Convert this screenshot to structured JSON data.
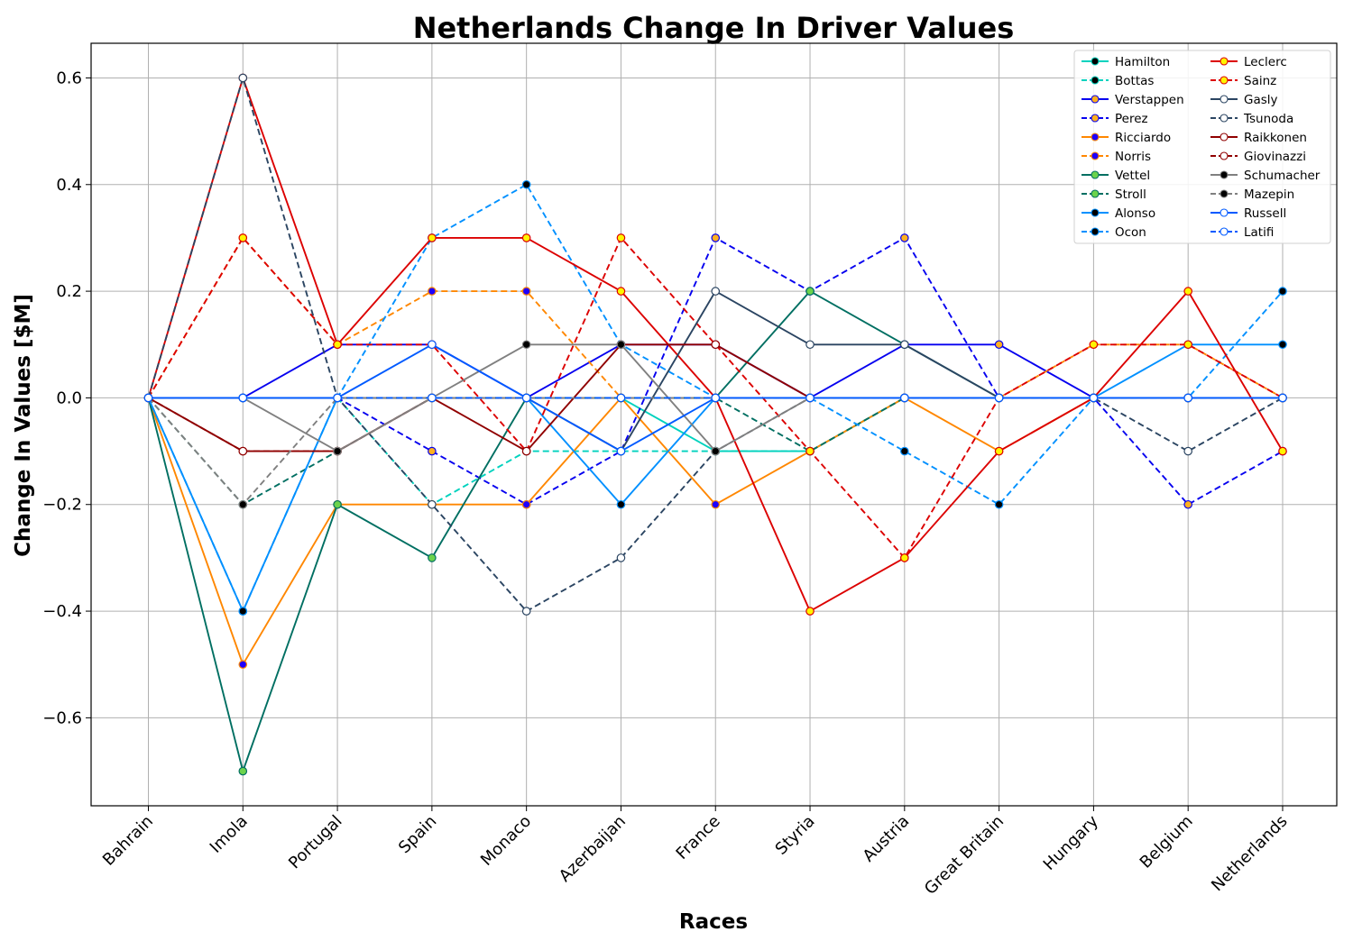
{
  "chart_data": {
    "type": "line",
    "title": "Netherlands Change In Driver Values",
    "xlabel": "Races",
    "ylabel": "Change In Values [$M]",
    "categories": [
      "Bahrain",
      "Imola",
      "Portugal",
      "Spain",
      "Monaco",
      "Azerbaijan",
      "France",
      "Styria",
      "Austria",
      "Great Britain",
      "Hungary",
      "Belgium",
      "Netherlands"
    ],
    "ylim": [
      -0.765,
      0.665
    ],
    "yticks": [
      -0.6,
      -0.4,
      -0.2,
      0.0,
      0.2,
      0.4,
      0.6
    ],
    "ytick_labels": [
      "−0.6",
      "−0.4",
      "−0.2",
      "0.0",
      "0.2",
      "0.4",
      "0.6"
    ],
    "grid": true,
    "legend_position": "top-right",
    "series": [
      {
        "name": "Hamilton",
        "color": "#00d2be",
        "dash": false,
        "marker_fill": "#000000",
        "marker_edge": "#00d2be",
        "values": [
          0,
          0,
          0,
          0,
          0,
          0,
          -0.1,
          -0.1,
          0,
          0,
          0,
          0,
          0
        ]
      },
      {
        "name": "Bottas",
        "color": "#00d2be",
        "dash": true,
        "marker_fill": "#000000",
        "marker_edge": "#00d2be",
        "values": [
          0,
          0,
          0,
          -0.2,
          -0.1,
          -0.1,
          -0.1,
          -0.1,
          0,
          0,
          0,
          0,
          0
        ]
      },
      {
        "name": "Verstappen",
        "color": "#0600ef",
        "dash": false,
        "marker_fill": "#ffb01f",
        "marker_edge": "#0600ef",
        "values": [
          0,
          0,
          0.1,
          0.1,
          0,
          0.1,
          0.1,
          0,
          0.1,
          0.1,
          0,
          0,
          0
        ]
      },
      {
        "name": "Perez",
        "color": "#0600ef",
        "dash": true,
        "marker_fill": "#ffb01f",
        "marker_edge": "#0600ef",
        "values": [
          0,
          0,
          0,
          -0.1,
          -0.2,
          -0.1,
          0.3,
          0.2,
          0.3,
          0,
          0,
          -0.2,
          -0.1
        ]
      },
      {
        "name": "Ricciardo",
        "color": "#ff8700",
        "dash": false,
        "marker_fill": "#1e00ff",
        "marker_edge": "#ff8700",
        "values": [
          0,
          -0.5,
          -0.2,
          -0.2,
          -0.2,
          0,
          -0.2,
          -0.1,
          0,
          -0.1,
          0,
          0,
          0
        ]
      },
      {
        "name": "Norris",
        "color": "#ff8700",
        "dash": true,
        "marker_fill": "#1e00ff",
        "marker_edge": "#ff8700",
        "values": [
          0,
          0.3,
          0.1,
          0.2,
          0.2,
          0,
          0,
          0,
          0,
          0,
          0.1,
          0.1,
          0
        ]
      },
      {
        "name": "Vettel",
        "color": "#006f62",
        "dash": false,
        "marker_fill": "#6cd34c",
        "marker_edge": "#006f62",
        "values": [
          0,
          -0.7,
          -0.2,
          -0.3,
          0,
          0,
          0,
          0.2,
          0.1,
          0,
          0,
          0,
          0
        ]
      },
      {
        "name": "Stroll",
        "color": "#006f62",
        "dash": true,
        "marker_fill": "#6cd34c",
        "marker_edge": "#006f62",
        "values": [
          0,
          -0.2,
          -0.1,
          0,
          0,
          0,
          0,
          -0.1,
          0,
          0,
          0,
          0,
          0
        ]
      },
      {
        "name": "Alonso",
        "color": "#0090ff",
        "dash": false,
        "marker_fill": "#000000",
        "marker_edge": "#0090ff",
        "values": [
          0,
          -0.4,
          0,
          0,
          0,
          -0.2,
          0,
          0,
          0,
          0,
          0,
          0.1,
          0.1
        ]
      },
      {
        "name": "Ocon",
        "color": "#0090ff",
        "dash": true,
        "marker_fill": "#000000",
        "marker_edge": "#0090ff",
        "values": [
          0,
          -0.4,
          0,
          0.3,
          0.4,
          0.1,
          0,
          0,
          -0.1,
          -0.2,
          0,
          0,
          0.2
        ]
      },
      {
        "name": "Leclerc",
        "color": "#dc0000",
        "dash": false,
        "marker_fill": "#fff500",
        "marker_edge": "#dc0000",
        "values": [
          0,
          0.6,
          0.1,
          0.3,
          0.3,
          0.2,
          0,
          -0.4,
          -0.3,
          -0.1,
          0,
          0.2,
          -0.1
        ]
      },
      {
        "name": "Sainz",
        "color": "#dc0000",
        "dash": true,
        "marker_fill": "#fff500",
        "marker_edge": "#dc0000",
        "values": [
          0,
          0.3,
          0.1,
          0.1,
          -0.1,
          0.3,
          0.1,
          -0.1,
          -0.3,
          0,
          0.1,
          0.1,
          0
        ]
      },
      {
        "name": "Gasly",
        "color": "#2b4562",
        "dash": false,
        "marker_fill": "#ffffff",
        "marker_edge": "#2b4562",
        "values": [
          0,
          0,
          0,
          0,
          0,
          -0.1,
          0.2,
          0.1,
          0.1,
          0,
          0,
          0,
          0
        ]
      },
      {
        "name": "Tsunoda",
        "color": "#2b4562",
        "dash": true,
        "marker_fill": "#ffffff",
        "marker_edge": "#2b4562",
        "values": [
          0,
          0.6,
          0,
          -0.2,
          -0.4,
          -0.3,
          -0.1,
          0,
          0,
          0,
          0,
          -0.1,
          0
        ]
      },
      {
        "name": "Raikkonen",
        "color": "#900000",
        "dash": false,
        "marker_fill": "#ffffff",
        "marker_edge": "#900000",
        "values": [
          0,
          -0.1,
          -0.1,
          0,
          -0.1,
          0.1,
          0.1,
          0,
          0,
          0,
          0,
          0,
          0
        ]
      },
      {
        "name": "Giovinazzi",
        "color": "#900000",
        "dash": true,
        "marker_fill": "#ffffff",
        "marker_edge": "#900000",
        "values": [
          0,
          -0.1,
          -0.1,
          0,
          0,
          0,
          0,
          0,
          0,
          0,
          0,
          0,
          0
        ]
      },
      {
        "name": "Schumacher",
        "color": "#808080",
        "dash": false,
        "marker_fill": "#000000",
        "marker_edge": "#808080",
        "values": [
          0,
          0,
          -0.1,
          0,
          0.1,
          0.1,
          -0.1,
          0,
          0,
          0,
          0,
          0,
          0
        ]
      },
      {
        "name": "Mazepin",
        "color": "#808080",
        "dash": true,
        "marker_fill": "#000000",
        "marker_edge": "#808080",
        "values": [
          0,
          -0.2,
          0,
          0,
          0,
          0,
          0,
          0,
          0,
          0,
          0,
          0,
          0
        ]
      },
      {
        "name": "Russell",
        "color": "#005aff",
        "dash": false,
        "marker_fill": "#ffffff",
        "marker_edge": "#005aff",
        "values": [
          0,
          0,
          0,
          0.1,
          0,
          -0.1,
          0,
          0,
          0,
          0,
          0,
          0,
          0
        ]
      },
      {
        "name": "Latifi",
        "color": "#005aff",
        "dash": true,
        "marker_fill": "#ffffff",
        "marker_edge": "#005aff",
        "values": [
          0,
          0,
          0,
          0,
          0,
          0,
          0,
          0,
          0,
          0,
          0,
          0,
          0
        ]
      }
    ]
  }
}
